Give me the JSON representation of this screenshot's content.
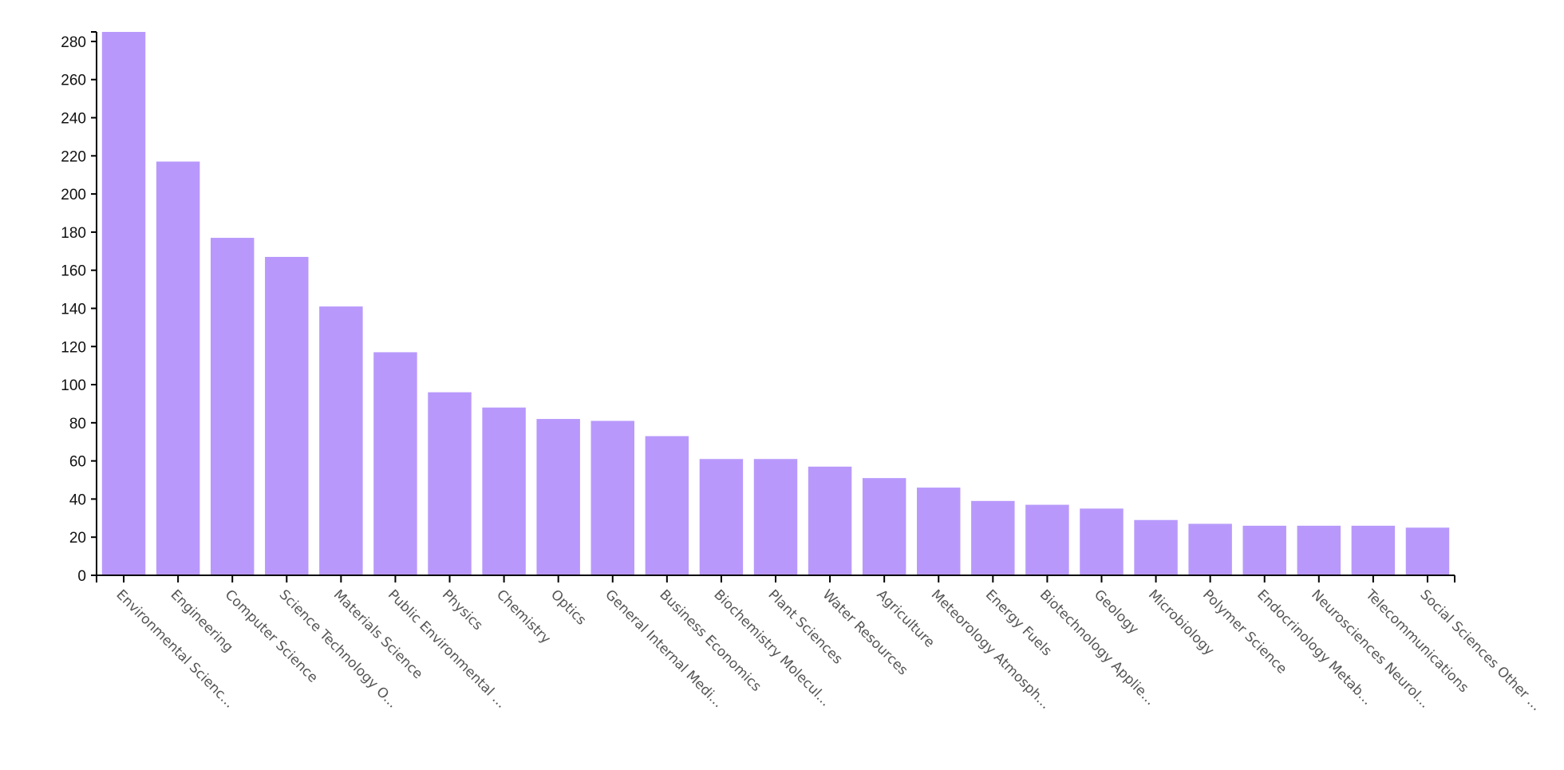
{
  "chart_data": {
    "type": "bar",
    "title": "",
    "xlabel": "",
    "ylabel": "",
    "ylim": [
      0,
      285
    ],
    "y_ticks": [
      0,
      20,
      40,
      60,
      80,
      100,
      120,
      140,
      160,
      180,
      200,
      220,
      240,
      260,
      280
    ],
    "grid": false,
    "legend": "none",
    "bar_color": "#b899fb",
    "categories": [
      "Environmental Scienc...",
      "Engineering",
      "Computer Science",
      "Science Technology O...",
      "Materials Science",
      "Public Environmental ...",
      "Physics",
      "Chemistry",
      "Optics",
      "General Internal Medi...",
      "Business Economics",
      "Biochemistry Molecul...",
      "Plant Sciences",
      "Water Resources",
      "Agriculture",
      "Meteorology Atmosph...",
      "Energy Fuels",
      "Biotechnology Applie...",
      "Geology",
      "Microbiology",
      "Polymer Science",
      "Endocrinology Metab...",
      "Neurosciences Neurol...",
      "Telecommunications",
      "Social Sciences Other ..."
    ],
    "values": [
      285,
      217,
      177,
      167,
      141,
      117,
      96,
      88,
      82,
      81,
      73,
      61,
      61,
      57,
      51,
      46,
      39,
      37,
      35,
      29,
      27,
      26,
      26,
      26,
      25
    ]
  }
}
